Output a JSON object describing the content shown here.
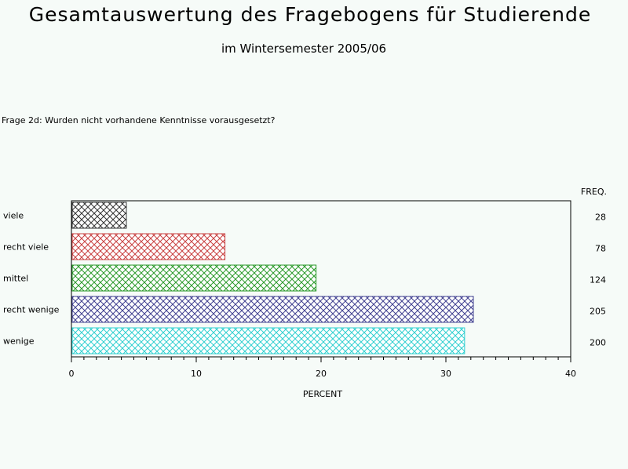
{
  "header": {
    "title": "Gesamtauswertung des Fragebogens für Studierende",
    "subtitle": "im Wintersemester 2005/06"
  },
  "question": "Frage 2d: Wurden nicht vorhandene Kenntnisse vorausgesetzt?",
  "chart_data": {
    "type": "bar",
    "orientation": "horizontal",
    "categories": [
      "viele",
      "recht viele",
      "mittel",
      "recht wenige",
      "wenige"
    ],
    "values": [
      4.4,
      12.3,
      19.6,
      32.2,
      31.5
    ],
    "freq": [
      "28",
      "78",
      "124",
      "205",
      "200"
    ],
    "freq_header": "FREQ.",
    "xlabel": "PERCENT",
    "xlim": [
      0,
      40
    ],
    "xticks": [
      "0",
      "10",
      "20",
      "30",
      "40"
    ],
    "colors": [
      "#333333",
      "#c84040",
      "#2a9a2a",
      "#404090",
      "#30d0d0"
    ],
    "fill_pattern": "crosshatch",
    "grid": false
  }
}
